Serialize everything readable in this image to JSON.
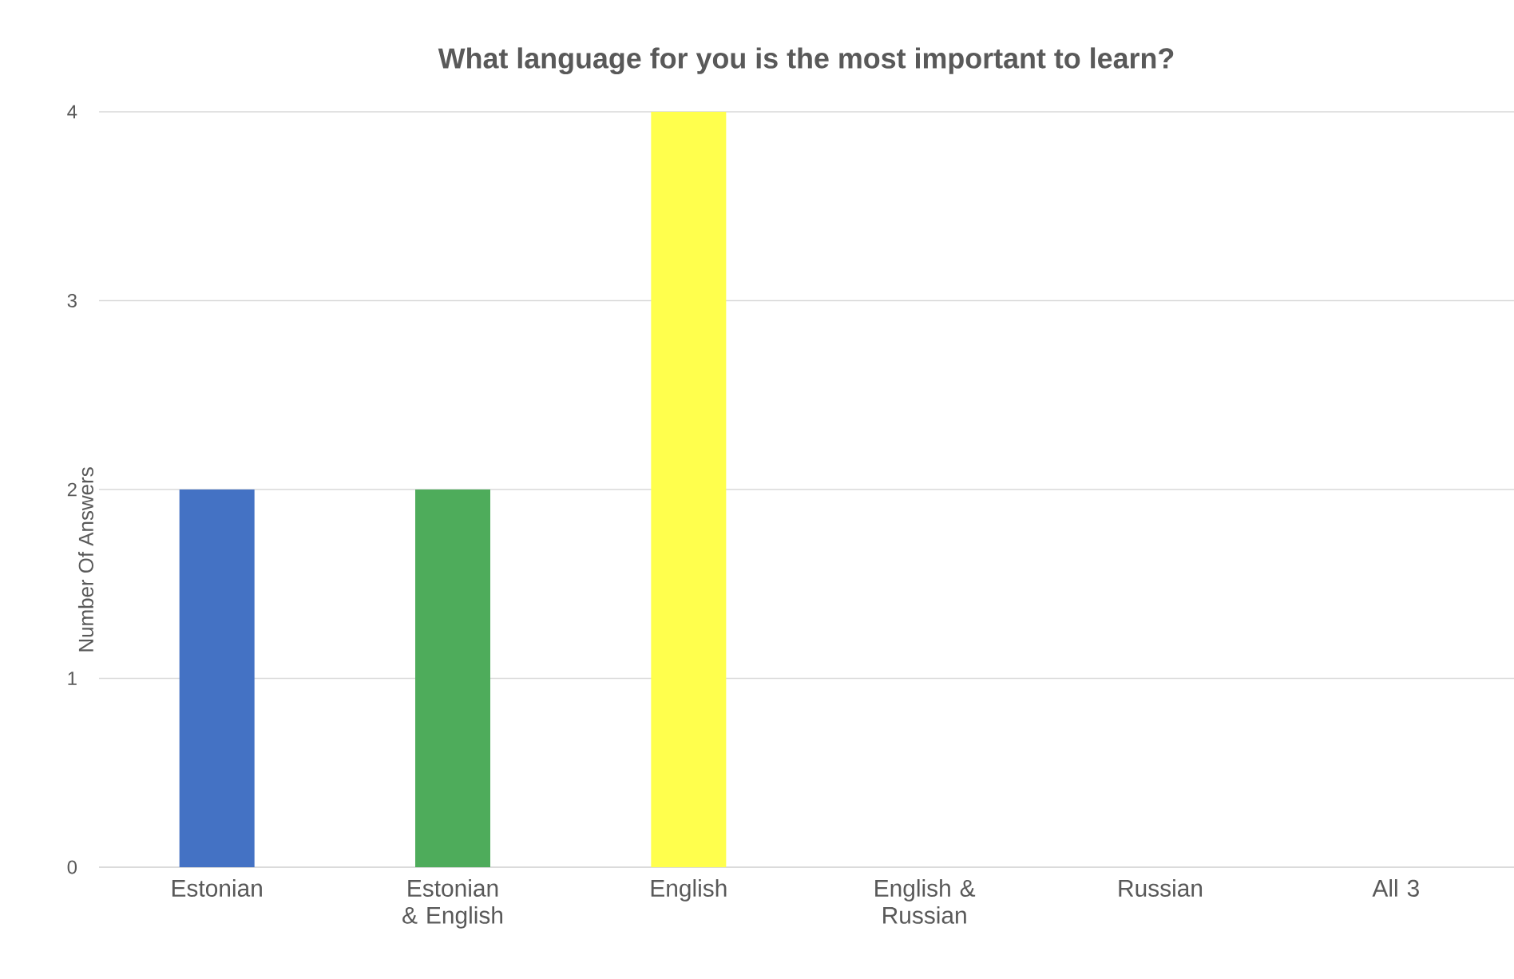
{
  "chart_data": {
    "type": "bar",
    "title": "What language for you is the most important to learn?",
    "ylabel": "Number Of Answers",
    "categories": [
      "Estonian",
      "Estonian & English",
      "English",
      "English & Russian",
      "Russian",
      "All 3"
    ],
    "values": [
      2,
      2,
      4,
      0,
      0,
      0
    ],
    "colors": [
      "#4472c4",
      "#4eac5b",
      "#ffff4d",
      null,
      null,
      null
    ],
    "ylim": [
      0,
      4
    ],
    "yticks": [
      0,
      1,
      2,
      3,
      4
    ],
    "grid": "y"
  }
}
